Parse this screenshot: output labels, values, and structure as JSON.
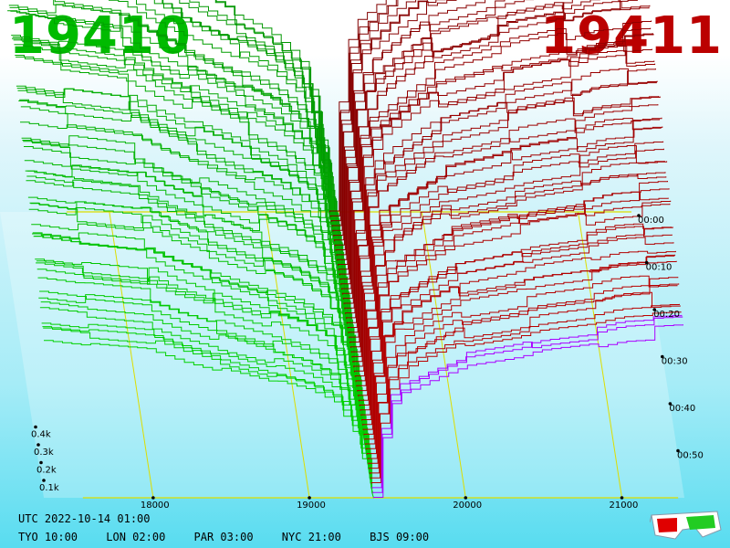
{
  "header": {
    "bid_price": "19410",
    "ask_price": "19411"
  },
  "footer": {
    "utc": "UTC 2022-10-14 01:00",
    "cities": [
      {
        "label": "TYO 10:00"
      },
      {
        "label": "LON 02:00"
      },
      {
        "label": "PAR 03:00"
      },
      {
        "label": "NYC 21:00"
      },
      {
        "label": "BJS 09:00"
      }
    ]
  },
  "icons": {
    "glasses": "3d-glasses-icon"
  },
  "colors": {
    "bid": "#00bb00",
    "ask": "#bb0000",
    "grid": "#dddd00",
    "mid_low": "#aa00ff"
  },
  "chart_data": {
    "type": "area",
    "x_range": [
      17300,
      21400
    ],
    "mid_price": 19410.5,
    "x_ticks": [
      "18000",
      "19000",
      "20000",
      "21000"
    ],
    "x_tick_values": [
      18000,
      19000,
      20000,
      21000
    ],
    "y_ticks": [
      "0.1k",
      "0.2k",
      "0.3k",
      "0.4k"
    ],
    "y_tick_values": [
      100,
      200,
      300,
      400
    ],
    "time_ticks": [
      "00:00",
      "00:10",
      "00:20",
      "00:30",
      "00:40",
      "00:50"
    ],
    "time_tick_minutes": [
      0,
      10,
      20,
      30,
      40,
      50
    ],
    "time_range_minutes": [
      0,
      60
    ],
    "snapshots": 60,
    "bid_depth_points": {
      "price": [
        17300,
        17600,
        18000,
        18200,
        18500,
        19000,
        19200,
        19300,
        19410
      ],
      "cumulative_volume": [
        430,
        415,
        400,
        370,
        335,
        280,
        240,
        170,
        0
      ]
    },
    "ask_depth_points": {
      "price": [
        19411,
        19500,
        19600,
        19800,
        20000,
        20300,
        20500,
        20800,
        21000,
        21400
      ],
      "cumulative_volume": [
        0,
        240,
        290,
        330,
        365,
        385,
        405,
        420,
        440,
        450
      ]
    }
  }
}
